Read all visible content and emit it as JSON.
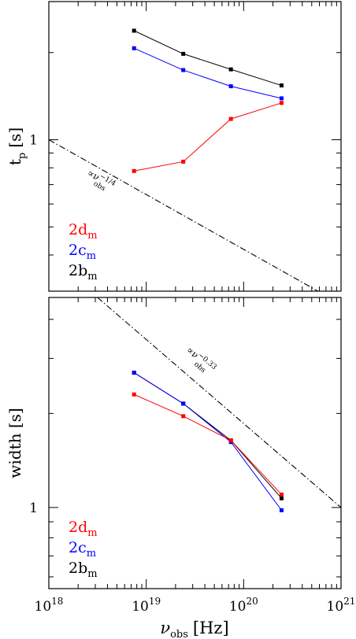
{
  "chart_data": [
    {
      "type": "line",
      "xscale": "log",
      "yscale": "log",
      "xlim": [
        1e+18,
        1e+21
      ],
      "ylim": [
        0.3,
        3.0
      ],
      "ylabel_main": "t",
      "ylabel_sub": "p",
      "ylabel_unit": "[s]",
      "ytick_labels": [
        {
          "value": 1,
          "label": "1"
        }
      ],
      "x": [
        7.5e+18,
        2.4e+19,
        7.4e+19,
        2.45e+20
      ],
      "series": [
        {
          "name_main": "2b",
          "name_sub": "m",
          "color": "#000000",
          "values": [
            2.38,
            1.98,
            1.75,
            1.54
          ]
        },
        {
          "name_main": "2c",
          "name_sub": "m",
          "color": "#0000ff",
          "values": [
            2.07,
            1.74,
            1.53,
            1.39
          ]
        },
        {
          "name_main": "2d",
          "name_sub": "m",
          "color": "#ff0000",
          "values": [
            0.78,
            0.84,
            1.18,
            1.34
          ]
        }
      ],
      "reference_line": {
        "x": [
          1e+18,
          5.8e+20
        ],
        "y": [
          1.0,
          0.3
        ],
        "label": "∝ν",
        "label_sub": "obs",
        "label_exp": "−1/4"
      }
    },
    {
      "type": "line",
      "xscale": "log",
      "yscale": "log",
      "xlim": [
        1e+18,
        1e+21
      ],
      "ylim": [
        0.55,
        4.7
      ],
      "xlabel_main": "ν",
      "xlabel_sub": "obs",
      "xlabel_unit": "[Hz]",
      "ylabel": "width [s]",
      "ytick_labels": [
        {
          "value": 1,
          "label": "1"
        }
      ],
      "xtick_labels": [
        {
          "value": 1e+18,
          "base": "10",
          "exp": "18"
        },
        {
          "value": 1e+19,
          "base": "10",
          "exp": "19"
        },
        {
          "value": 1e+20,
          "base": "10",
          "exp": "20"
        },
        {
          "value": 1e+21,
          "base": "10",
          "exp": "21"
        }
      ],
      "x": [
        7.5e+18,
        2.4e+19,
        7.4e+19,
        2.45e+20
      ],
      "series": [
        {
          "name_main": "2b",
          "name_sub": "m",
          "color": "#000000",
          "values": [
            2.7,
            2.15,
            1.64,
            1.07
          ]
        },
        {
          "name_main": "2c",
          "name_sub": "m",
          "color": "#0000ff",
          "values": [
            2.7,
            2.15,
            1.62,
            0.98
          ]
        },
        {
          "name_main": "2d",
          "name_sub": "m",
          "color": "#ff0000",
          "values": [
            2.3,
            1.96,
            1.64,
            1.1
          ]
        }
      ],
      "reference_line": {
        "x": [
          3.16e+18,
          1e+21
        ],
        "y": [
          4.7,
          1.0
        ],
        "label": "∝ν",
        "label_sub": "obs",
        "label_exp": "−0.33"
      }
    }
  ]
}
